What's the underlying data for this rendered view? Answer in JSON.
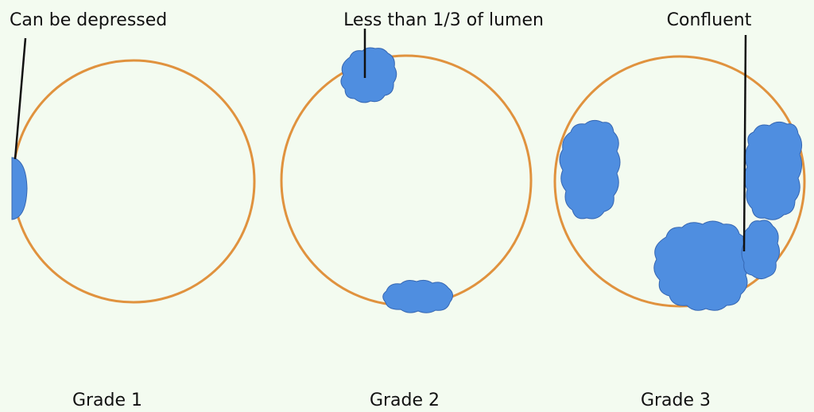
{
  "background_color": "#f3fbf0",
  "colors": {
    "lumen_outline": "#e0923e",
    "lesion_fill": "#4f8ee0",
    "lesion_edge": "#3566b2",
    "pointer_line": "#111111"
  },
  "panels": [
    {
      "grade_label": "Grade 1",
      "annotation": "Can be depressed",
      "lesions": [
        "flat-lesion"
      ]
    },
    {
      "grade_label": "Grade 2",
      "annotation": "Less than 1/3 of lumen",
      "lesions": [
        "lesion-top",
        "lesion-bottom"
      ]
    },
    {
      "grade_label": "Grade 3",
      "annotation": "Confluent",
      "lesions": [
        "lesion-left",
        "lesion-right-upper",
        "lesion-bottom-large",
        "lesion-right-small"
      ]
    }
  ]
}
